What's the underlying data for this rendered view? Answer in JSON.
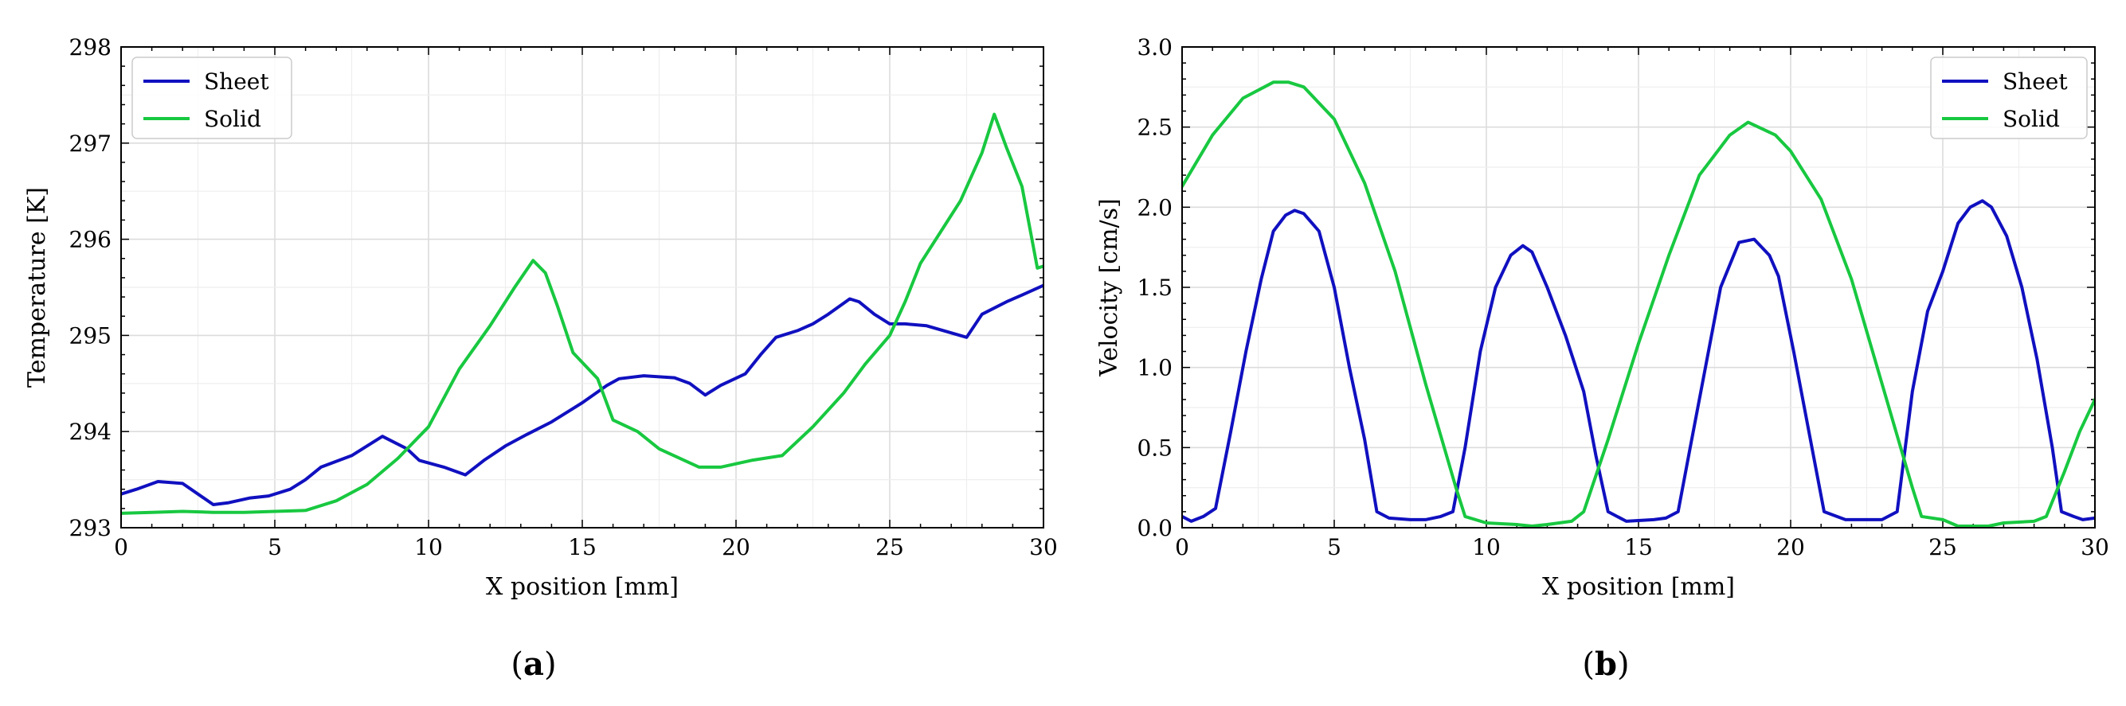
{
  "chart_data": [
    {
      "type": "line",
      "panel_caption": "(a)",
      "xlabel": "X position [mm]",
      "ylabel": "Temperature [K]",
      "xlim": [
        0,
        30
      ],
      "ylim": [
        293,
        298
      ],
      "xticks": [
        0,
        5,
        10,
        15,
        20,
        25,
        30
      ],
      "yticks": [
        293,
        294,
        295,
        296,
        297,
        298
      ],
      "grid": true,
      "legend_position": "top-left",
      "series": [
        {
          "name": "Sheet",
          "color": "#1010c0",
          "points": [
            [
              0,
              293.35
            ],
            [
              0.5,
              293.4
            ],
            [
              1.2,
              293.48
            ],
            [
              2,
              293.46
            ],
            [
              2.5,
              293.35
            ],
            [
              3,
              293.24
            ],
            [
              3.5,
              293.26
            ],
            [
              4.2,
              293.31
            ],
            [
              4.8,
              293.33
            ],
            [
              5.5,
              293.4
            ],
            [
              6,
              293.5
            ],
            [
              6.5,
              293.63
            ],
            [
              7.5,
              293.75
            ],
            [
              8.5,
              293.95
            ],
            [
              9.3,
              293.82
            ],
            [
              9.7,
              293.7
            ],
            [
              10.5,
              293.63
            ],
            [
              11.2,
              293.55
            ],
            [
              11.8,
              293.7
            ],
            [
              12.5,
              293.85
            ],
            [
              13.2,
              293.97
            ],
            [
              14,
              294.1
            ],
            [
              15,
              294.3
            ],
            [
              15.8,
              294.48
            ],
            [
              16.2,
              294.55
            ],
            [
              17,
              294.58
            ],
            [
              18,
              294.56
            ],
            [
              18.5,
              294.5
            ],
            [
              19,
              294.38
            ],
            [
              19.5,
              294.48
            ],
            [
              20.3,
              294.6
            ],
            [
              20.8,
              294.8
            ],
            [
              21.3,
              294.98
            ],
            [
              22,
              295.05
            ],
            [
              22.5,
              295.12
            ],
            [
              23,
              295.22
            ],
            [
              23.7,
              295.38
            ],
            [
              24,
              295.35
            ],
            [
              24.5,
              295.22
            ],
            [
              25,
              295.12
            ],
            [
              25.5,
              295.12
            ],
            [
              26.2,
              295.1
            ],
            [
              27.5,
              294.98
            ],
            [
              28,
              295.22
            ],
            [
              28.8,
              295.35
            ],
            [
              29.3,
              295.42
            ],
            [
              30,
              295.52
            ]
          ]
        },
        {
          "name": "Solid",
          "color": "#18c840",
          "points": [
            [
              0,
              293.15
            ],
            [
              1,
              293.16
            ],
            [
              2,
              293.17
            ],
            [
              3,
              293.16
            ],
            [
              4,
              293.16
            ],
            [
              5,
              293.17
            ],
            [
              6,
              293.18
            ],
            [
              7,
              293.28
            ],
            [
              8,
              293.45
            ],
            [
              9,
              293.72
            ],
            [
              10,
              294.05
            ],
            [
              11,
              294.65
            ],
            [
              12,
              295.1
            ],
            [
              12.8,
              295.5
            ],
            [
              13.4,
              295.78
            ],
            [
              13.8,
              295.65
            ],
            [
              14.2,
              295.3
            ],
            [
              14.7,
              294.82
            ],
            [
              15.5,
              294.55
            ],
            [
              16,
              294.12
            ],
            [
              16.8,
              294.0
            ],
            [
              17.5,
              293.82
            ],
            [
              18.8,
              293.63
            ],
            [
              19.5,
              293.63
            ],
            [
              20.5,
              293.7
            ],
            [
              21.5,
              293.75
            ],
            [
              22.5,
              294.05
            ],
            [
              23.5,
              294.4
            ],
            [
              24.2,
              294.7
            ],
            [
              25,
              295.0
            ],
            [
              25.5,
              295.35
            ],
            [
              26,
              295.75
            ],
            [
              26.8,
              296.15
            ],
            [
              27.3,
              296.4
            ],
            [
              28,
              296.9
            ],
            [
              28.4,
              297.3
            ],
            [
              28.8,
              296.95
            ],
            [
              29.3,
              296.55
            ],
            [
              29.8,
              295.7
            ],
            [
              30,
              295.72
            ]
          ]
        }
      ]
    },
    {
      "type": "line",
      "panel_caption": "(b)",
      "xlabel": "X position [mm]",
      "ylabel": "Velocity [cm/s]",
      "xlim": [
        0,
        30
      ],
      "ylim": [
        0,
        3
      ],
      "xticks": [
        0,
        5,
        10,
        15,
        20,
        25,
        30
      ],
      "yticks": [
        "0.0",
        "0.5",
        "1.0",
        "1.5",
        "2.0",
        "2.5",
        "3.0"
      ],
      "grid": true,
      "legend_position": "top-right",
      "series": [
        {
          "name": "Sheet",
          "color": "#1010c0",
          "points": [
            [
              0,
              0.07
            ],
            [
              0.3,
              0.04
            ],
            [
              0.7,
              0.07
            ],
            [
              1.1,
              0.12
            ],
            [
              1.6,
              0.6
            ],
            [
              2.1,
              1.1
            ],
            [
              2.6,
              1.55
            ],
            [
              3.0,
              1.85
            ],
            [
              3.4,
              1.95
            ],
            [
              3.7,
              1.98
            ],
            [
              4.0,
              1.96
            ],
            [
              4.5,
              1.85
            ],
            [
              5.0,
              1.5
            ],
            [
              5.5,
              1.0
            ],
            [
              6.0,
              0.55
            ],
            [
              6.4,
              0.1
            ],
            [
              6.8,
              0.06
            ],
            [
              7.5,
              0.05
            ],
            [
              8.0,
              0.05
            ],
            [
              8.5,
              0.07
            ],
            [
              8.9,
              0.1
            ],
            [
              9.3,
              0.5
            ],
            [
              9.8,
              1.1
            ],
            [
              10.3,
              1.5
            ],
            [
              10.8,
              1.7
            ],
            [
              11.2,
              1.76
            ],
            [
              11.5,
              1.72
            ],
            [
              12.0,
              1.5
            ],
            [
              12.6,
              1.2
            ],
            [
              13.2,
              0.85
            ],
            [
              13.6,
              0.45
            ],
            [
              14.0,
              0.1
            ],
            [
              14.6,
              0.04
            ],
            [
              15.5,
              0.05
            ],
            [
              15.9,
              0.06
            ],
            [
              16.3,
              0.1
            ],
            [
              16.7,
              0.5
            ],
            [
              17.2,
              1.0
            ],
            [
              17.7,
              1.5
            ],
            [
              18.3,
              1.78
            ],
            [
              18.8,
              1.8
            ],
            [
              19.3,
              1.7
            ],
            [
              19.6,
              1.57
            ],
            [
              20.1,
              1.1
            ],
            [
              20.6,
              0.6
            ],
            [
              21.1,
              0.1
            ],
            [
              21.8,
              0.05
            ],
            [
              22.5,
              0.05
            ],
            [
              23.0,
              0.05
            ],
            [
              23.5,
              0.1
            ],
            [
              24.0,
              0.85
            ],
            [
              24.5,
              1.35
            ],
            [
              25.0,
              1.6
            ],
            [
              25.5,
              1.9
            ],
            [
              25.9,
              2.0
            ],
            [
              26.3,
              2.04
            ],
            [
              26.6,
              2.0
            ],
            [
              27.1,
              1.82
            ],
            [
              27.6,
              1.5
            ],
            [
              28.1,
              1.05
            ],
            [
              28.6,
              0.5
            ],
            [
              28.9,
              0.1
            ],
            [
              29.3,
              0.07
            ],
            [
              29.6,
              0.05
            ],
            [
              30,
              0.06
            ]
          ]
        },
        {
          "name": "Solid",
          "color": "#18c840",
          "points": [
            [
              0,
              2.13
            ],
            [
              1,
              2.45
            ],
            [
              2,
              2.68
            ],
            [
              3,
              2.78
            ],
            [
              3.5,
              2.78
            ],
            [
              4,
              2.75
            ],
            [
              5,
              2.55
            ],
            [
              6,
              2.15
            ],
            [
              7,
              1.6
            ],
            [
              8,
              0.9
            ],
            [
              9,
              0.25
            ],
            [
              9.3,
              0.07
            ],
            [
              10,
              0.03
            ],
            [
              11,
              0.02
            ],
            [
              11.5,
              0.01
            ],
            [
              12,
              0.02
            ],
            [
              12.8,
              0.04
            ],
            [
              13.2,
              0.1
            ],
            [
              14,
              0.55
            ],
            [
              15,
              1.15
            ],
            [
              16,
              1.7
            ],
            [
              17,
              2.2
            ],
            [
              18,
              2.45
            ],
            [
              18.6,
              2.53
            ],
            [
              19.5,
              2.45
            ],
            [
              20,
              2.35
            ],
            [
              21,
              2.05
            ],
            [
              22,
              1.55
            ],
            [
              23,
              0.9
            ],
            [
              24,
              0.25
            ],
            [
              24.3,
              0.07
            ],
            [
              25,
              0.05
            ],
            [
              25.5,
              0.01
            ],
            [
              26.5,
              0.01
            ],
            [
              27,
              0.03
            ],
            [
              28,
              0.04
            ],
            [
              28.4,
              0.07
            ],
            [
              29,
              0.35
            ],
            [
              29.5,
              0.6
            ],
            [
              30,
              0.8
            ]
          ]
        }
      ]
    }
  ]
}
